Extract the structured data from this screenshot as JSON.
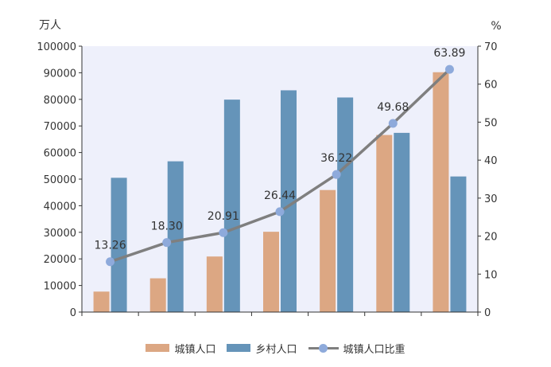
{
  "chart_data": {
    "type": "bar",
    "categories": [
      "",
      "",
      "",
      "",
      "",
      "",
      ""
    ],
    "y_left_unit": "万人",
    "y_right_unit": "%",
    "ylim_left": [
      0,
      100000
    ],
    "ylim_right": [
      0,
      70
    ],
    "left_ticks": [
      "0",
      "10000",
      "20000",
      "30000",
      "40000",
      "50000",
      "60000",
      "70000",
      "80000",
      "90000",
      "100000"
    ],
    "right_ticks": [
      "0",
      "10",
      "20",
      "30",
      "40",
      "50",
      "60",
      "70"
    ],
    "grid": false,
    "legend_position": "bottom",
    "series": [
      {
        "name": "城镇人口",
        "type": "bar",
        "axis": "left",
        "color": "#dca783",
        "values": [
          7700,
          12700,
          20900,
          30200,
          45900,
          66600,
          90200
        ]
      },
      {
        "name": "乡村人口",
        "type": "bar",
        "axis": "left",
        "color": "#6594b9",
        "values": [
          50500,
          56700,
          79900,
          83400,
          80700,
          67400,
          51000
        ]
      },
      {
        "name": "城镇人口比重",
        "type": "line",
        "axis": "right",
        "color": "#7f7f7f",
        "marker_color": "#8eaadb",
        "values": [
          13.26,
          18.3,
          20.91,
          26.44,
          36.22,
          49.68,
          63.89
        ],
        "labels": [
          "13.26",
          "18.30",
          "20.91",
          "26.44",
          "36.22",
          "49.68",
          "63.89"
        ]
      }
    ]
  }
}
